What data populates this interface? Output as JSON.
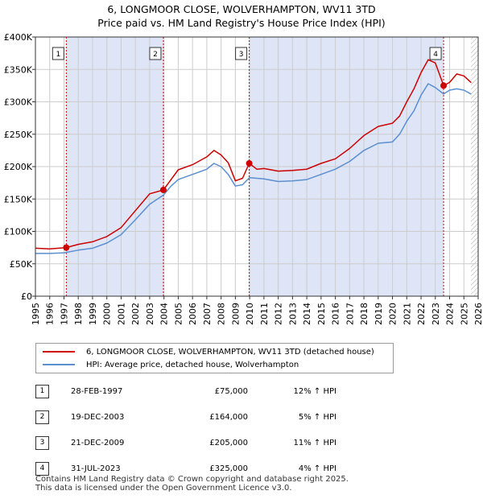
{
  "title_line1": "6, LONGMOOR CLOSE, WOLVERHAMPTON, WV11 3TD",
  "title_line2": "Price paid vs. HM Land Registry's House Price Index (HPI)",
  "colors": {
    "property": "#cc0000",
    "hpi": "#5b8fd0",
    "shade": "#dde5f7",
    "grid": "#cccccc",
    "marker_line": "#cc0000"
  },
  "chart_data": {
    "type": "line",
    "x_range": [
      1995,
      2026
    ],
    "ylim": [
      0,
      400000
    ],
    "y_ticks": [
      0,
      50000,
      100000,
      150000,
      200000,
      250000,
      300000,
      350000,
      400000
    ],
    "y_tick_labels": [
      "£0",
      "£50K",
      "£100K",
      "£150K",
      "£200K",
      "£250K",
      "£300K",
      "£350K",
      "£400K"
    ],
    "x_ticks": [
      1995,
      1996,
      1997,
      1998,
      1999,
      2000,
      2001,
      2002,
      2003,
      2004,
      2005,
      2006,
      2007,
      2008,
      2009,
      2010,
      2011,
      2012,
      2013,
      2014,
      2015,
      2016,
      2017,
      2018,
      2019,
      2020,
      2021,
      2022,
      2023,
      2024,
      2025,
      2026
    ],
    "x_tick_labels": [
      "1995",
      "1996",
      "1997",
      "1998",
      "1999",
      "2000",
      "2001",
      "2002",
      "2003",
      "2004",
      "2005",
      "2006",
      "2007",
      "2008",
      "2009",
      "2010",
      "2011",
      "2012",
      "2013",
      "2014",
      "2015",
      "2016",
      "2017",
      "2018",
      "2019",
      "2020",
      "2021",
      "2022",
      "2023",
      "2024",
      "2025",
      "2026"
    ],
    "future_hatch_from": 2025.5,
    "series": [
      {
        "name": "6, LONGMOOR CLOSE, WOLVERHAMPTON, WV11 3TD (detached house)",
        "color": "#cc0000",
        "x": [
          1995,
          1996,
          1997.16,
          1998,
          1999,
          2000,
          2001,
          2002,
          2003,
          2003.96,
          2004.5,
          2005,
          2006,
          2007,
          2007.5,
          2008,
          2008.5,
          2009,
          2009.5,
          2009.97,
          2010.5,
          2011,
          2012,
          2013,
          2014,
          2015,
          2016,
          2017,
          2018,
          2019,
          2020,
          2020.5,
          2021,
          2021.5,
          2022,
          2022.5,
          2023,
          2023.58,
          2024,
          2024.5,
          2025,
          2025.5
        ],
        "values": [
          74000,
          73000,
          75000,
          80000,
          84000,
          92000,
          106000,
          132000,
          158000,
          164000,
          180000,
          195000,
          203000,
          215000,
          225000,
          218000,
          206000,
          178000,
          182000,
          205000,
          196000,
          197000,
          193000,
          194000,
          196000,
          205000,
          212000,
          228000,
          248000,
          262000,
          267000,
          278000,
          300000,
          320000,
          345000,
          365000,
          360000,
          325000,
          330000,
          343000,
          340000,
          330000
        ]
      },
      {
        "name": "HPI: Average price, detached house, Wolverhampton",
        "color": "#5b8fd0",
        "x": [
          1995,
          1996,
          1997,
          1998,
          1999,
          2000,
          2001,
          2002,
          2003,
          2003.96,
          2004.5,
          2005,
          2006,
          2007,
          2007.5,
          2008,
          2008.5,
          2009,
          2009.5,
          2010,
          2011,
          2012,
          2013,
          2014,
          2015,
          2016,
          2017,
          2018,
          2019,
          2020,
          2020.5,
          2021,
          2021.5,
          2022,
          2022.5,
          2023,
          2023.58,
          2024,
          2024.5,
          2025,
          2025.5
        ],
        "values": [
          66000,
          66000,
          67000,
          71000,
          74000,
          82000,
          95000,
          118000,
          142000,
          156000,
          170000,
          180000,
          188000,
          196000,
          205000,
          200000,
          188000,
          170000,
          172000,
          183000,
          181000,
          177000,
          178000,
          180000,
          188000,
          196000,
          208000,
          225000,
          236000,
          238000,
          250000,
          270000,
          286000,
          310000,
          328000,
          322000,
          312000,
          318000,
          320000,
          318000,
          312000
        ]
      }
    ],
    "transactions": [
      {
        "label": "1",
        "x": 1997.16,
        "value": 75000,
        "date": "28-FEB-1997",
        "price": "£75,000",
        "hpi": "12% ↑ HPI"
      },
      {
        "label": "2",
        "x": 2003.96,
        "value": 164000,
        "date": "19-DEC-2003",
        "price": "£164,000",
        "hpi": "5% ↑ HPI"
      },
      {
        "label": "3",
        "x": 2009.97,
        "value": 205000,
        "date": "21-DEC-2009",
        "price": "£205,000",
        "hpi": "11% ↑ HPI"
      },
      {
        "label": "4",
        "x": 2023.58,
        "value": 325000,
        "date": "31-JUL-2023",
        "price": "£325,000",
        "hpi": "4% ↑ HPI"
      }
    ]
  },
  "legend": {
    "property_label": "6, LONGMOOR CLOSE, WOLVERHAMPTON, WV11 3TD (detached house)",
    "hpi_label": "HPI: Average price, detached house, Wolverhampton"
  },
  "footer": {
    "line1": "Contains HM Land Registry data © Crown copyright and database right 2025.",
    "line2": "This data is licensed under the Open Government Licence v3.0."
  }
}
